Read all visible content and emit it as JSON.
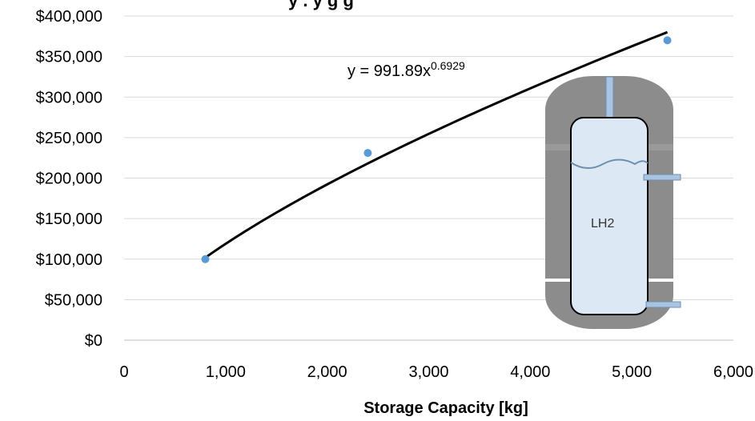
{
  "chart_data": {
    "type": "scatter",
    "title_fragment": "y . y   g     g",
    "xlabel": "Storage Capacity  [kg]",
    "ylabel": "",
    "xlim": [
      0,
      6000
    ],
    "ylim": [
      0,
      400000
    ],
    "x_ticks": [
      "0",
      "1,000",
      "2,000",
      "3,000",
      "4,000",
      "5,000",
      "6,000"
    ],
    "y_ticks": [
      "$0",
      "$50,000",
      "$100,000",
      "$150,000",
      "$200,000",
      "$250,000",
      "$300,000",
      "$350,000",
      "$400,000"
    ],
    "series": [
      {
        "points": [
          {
            "x": 800,
            "y": 100000
          },
          {
            "x": 2400,
            "y": 231000
          },
          {
            "x": 5350,
            "y": 370000
          }
        ]
      }
    ],
    "trendline": {
      "type": "power",
      "coefficient": 991.89,
      "exponent": 0.6929,
      "x_range": [
        800,
        5350
      ],
      "label_base": "y = 991.89x",
      "label_exponent": "0.6929"
    },
    "grid": true,
    "marker_color": "#5b9bd5",
    "line_color": "#000000",
    "gridline_color": "#d9d9d9"
  },
  "illustration": {
    "label": "LH2",
    "outer_color": "#8c8c8c",
    "inner_color": "#dce9f5",
    "pipe_color": "#a9c4e0"
  }
}
